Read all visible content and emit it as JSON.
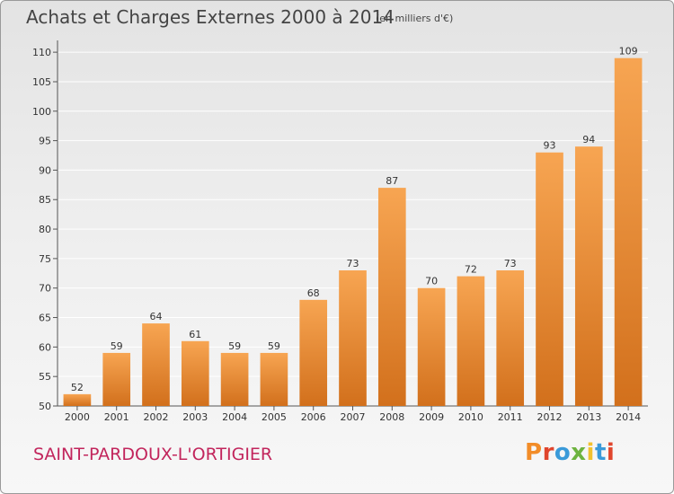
{
  "header": {
    "title": "Achats et Charges Externes 2000 à 2014",
    "subtitle": "(en milliers d'€)"
  },
  "footer": {
    "commune": "SAINT-PARDOUX-L'ORTIGIER",
    "logo_text": "Proxiti"
  },
  "colors": {
    "bar_top": "#f7a552",
    "bar_bottom": "#d2701c",
    "grid": "#ffffff",
    "commune_text": "#c2255c",
    "logo_letters": [
      "#f28c28",
      "#e0452d",
      "#3a9ad9",
      "#6db33f",
      "#f2c12e",
      "#3a9ad9",
      "#e0452d"
    ]
  },
  "chart_data": {
    "type": "bar",
    "title": "Achats et Charges Externes 2000 à 2014",
    "subtitle": "(en milliers d'€)",
    "xlabel": "",
    "ylabel": "",
    "categories": [
      "2000",
      "2001",
      "2002",
      "2003",
      "2004",
      "2005",
      "2006",
      "2007",
      "2008",
      "2009",
      "2010",
      "2011",
      "2012",
      "2013",
      "2014"
    ],
    "values": [
      52,
      59,
      64,
      61,
      59,
      59,
      68,
      73,
      87,
      70,
      72,
      73,
      93,
      94,
      109
    ],
    "ylim": [
      50,
      112
    ],
    "yticks": [
      50,
      55,
      60,
      65,
      70,
      75,
      80,
      85,
      90,
      95,
      100,
      105,
      110
    ],
    "grid": true,
    "legend": "none"
  }
}
